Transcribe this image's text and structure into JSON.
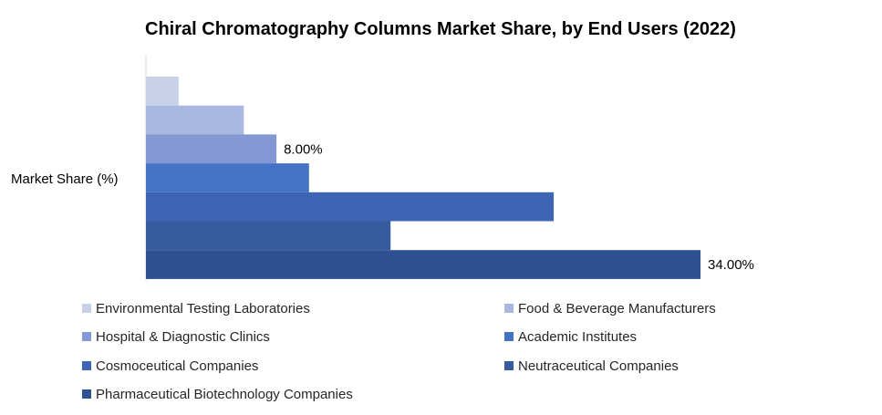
{
  "chart_data": {
    "type": "bar",
    "orientation": "horizontal",
    "title": "Chiral Chromatography Columns Market Share, by End Users (2022)",
    "category_label": "Market Share (%)",
    "x_range": [
      0,
      34
    ],
    "grid": false,
    "legend_position": "bottom",
    "series": [
      {
        "name": "Environmental Testing Laboratories",
        "value": 2,
        "color": "#c9d1e9"
      },
      {
        "name": "Food & Beverage Manufacturers",
        "value": 6,
        "color": "#a9b8e1"
      },
      {
        "name": "Hospital & Diagnostic Clinics",
        "value": 8,
        "color": "#8397d3",
        "data_label": "8.00%"
      },
      {
        "name": "Academic Institutes",
        "value": 10,
        "color": "#4472c4"
      },
      {
        "name": "Cosmoceutical Companies",
        "value": 25,
        "color": "#3e65b4"
      },
      {
        "name": "Neutraceutical Companies",
        "value": 15,
        "color": "#365b9f"
      },
      {
        "name": "Pharmaceutical Biotechnology Companies",
        "value": 34,
        "color": "#2f5191",
        "data_label": "34.00%"
      }
    ]
  }
}
